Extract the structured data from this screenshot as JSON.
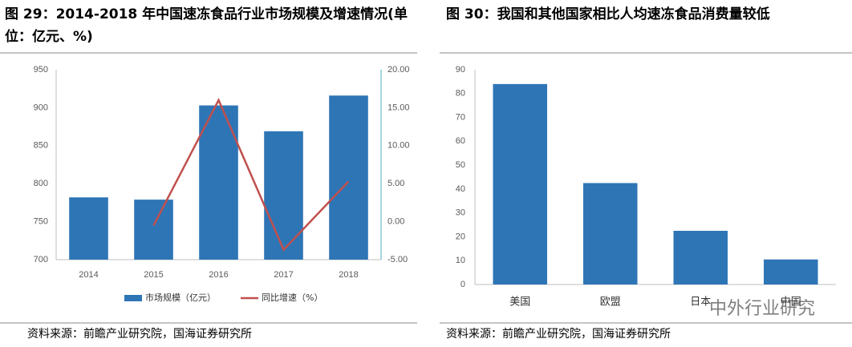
{
  "charts_title_left": "图 29：2014-2018 年中国速冻食品行业市场规模及增速情况(单位：亿元、%)",
  "charts_title_right": "图 30：我国和其他国家相比人均速冻食品消费量较低",
  "source_left": "资料来源：前瞻产业研究院，国海证券研究所",
  "source_right": "资料来源：前瞻产业研究院，国海证券研究所",
  "watermark": "中外行业研究",
  "chart_data": [
    {
      "type": "combo",
      "categories": [
        "2014",
        "2015",
        "2016",
        "2017",
        "2018"
      ],
      "series": [
        {
          "name": "市场规模（亿元）",
          "color": "#2e75b6",
          "kind": "bar",
          "values": [
            782,
            779,
            903,
            869,
            916
          ]
        },
        {
          "name": "同比增速（%）",
          "color": "#c0504d",
          "kind": "line",
          "axis": "y2",
          "values": [
            null,
            -0.5,
            16,
            -3.7,
            5.3
          ]
        }
      ],
      "ylim": [
        700,
        950
      ],
      "yticks": [
        700,
        750,
        800,
        850,
        900,
        950
      ],
      "y2lim": [
        -5,
        20
      ],
      "y2ticks": [
        {
          "value": -5,
          "label": "-5.00"
        },
        {
          "value": 0,
          "label": "0.00"
        },
        {
          "value": 5,
          "label": "5.00"
        },
        {
          "value": 10,
          "label": "10.00"
        },
        {
          "value": 15,
          "label": "15.00"
        },
        {
          "value": 20,
          "label": "20.00"
        }
      ],
      "grid": false,
      "legend": "bottom"
    },
    {
      "type": "bar",
      "categories": [
        "美国",
        "欧盟",
        "日本",
        "中国"
      ],
      "values": [
        84,
        42.5,
        22.5,
        10.5
      ],
      "color": "#2e75b6",
      "ylim": [
        0,
        90
      ],
      "yticks": [
        0,
        10,
        20,
        30,
        40,
        50,
        60,
        70,
        80,
        90
      ],
      "grid": false
    }
  ]
}
